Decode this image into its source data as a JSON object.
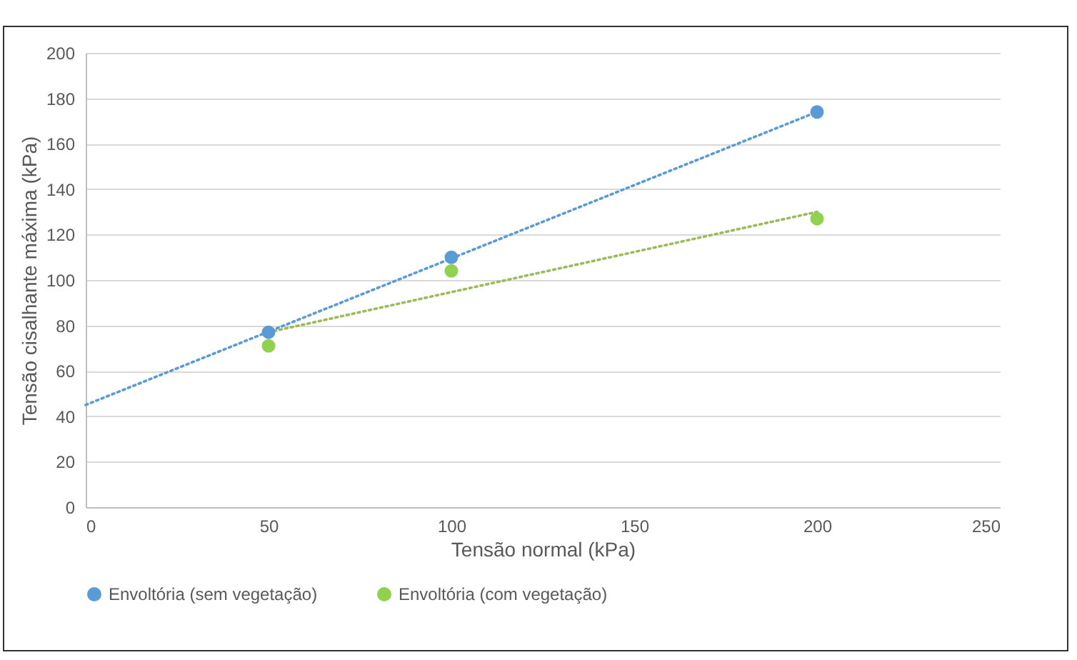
{
  "chart_data": {
    "type": "scatter",
    "xlabel": "Tensão normal (kPa)",
    "ylabel": "Tensão cisalhante máxima (kPa)",
    "xlim": [
      0,
      250
    ],
    "xticks": [
      0,
      50,
      100,
      150,
      200,
      250
    ],
    "ylim": [
      0,
      200
    ],
    "yticks": [
      0,
      20,
      40,
      60,
      80,
      100,
      120,
      140,
      160,
      180,
      200
    ],
    "grid": "y",
    "legend": "bottom",
    "series": [
      {
        "name": "Envoltória (sem vegetação)",
        "color": "#5b9bd5",
        "marker": "circle",
        "x": [
          50,
          100,
          200
        ],
        "values": [
          77,
          110,
          174
        ]
      },
      {
        "name": "Envoltória (com vegetação)",
        "color": "#92d050",
        "marker": "circle",
        "x": [
          50,
          100,
          200
        ],
        "values": [
          71,
          104,
          127
        ]
      },
      {
        "type": "line",
        "line_style": "dotted",
        "marker": "none",
        "color": "#5b9bd5",
        "x": [
          0,
          200
        ],
        "values": [
          45,
          174
        ]
      },
      {
        "type": "line",
        "line_style": "dotted",
        "marker": "none",
        "color": "#9bbb59",
        "x": [
          50,
          200
        ],
        "values": [
          77,
          130
        ]
      }
    ]
  }
}
